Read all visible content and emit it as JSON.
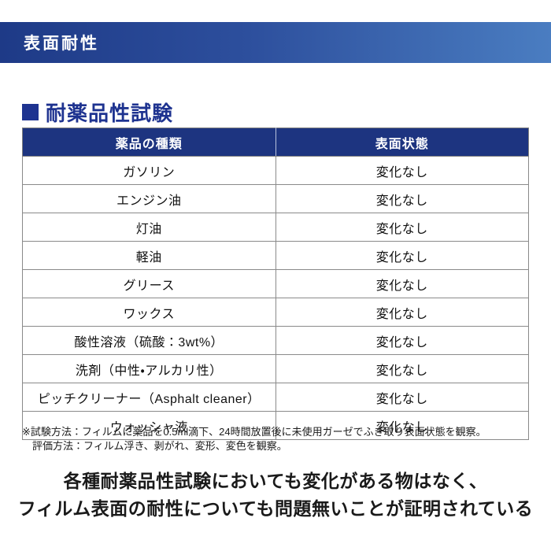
{
  "banner": {
    "title": "表面耐性"
  },
  "section": {
    "title": "耐薬品性試験"
  },
  "table": {
    "headers": {
      "chemical": "薬品の種類",
      "surface": "表面状態"
    },
    "rows": [
      {
        "chemical": "ガソリン",
        "state": "変化なし"
      },
      {
        "chemical": "エンジン油",
        "state": "変化なし"
      },
      {
        "chemical": "灯油",
        "state": "変化なし"
      },
      {
        "chemical": "軽油",
        "state": "変化なし"
      },
      {
        "chemical": "グリース",
        "state": "変化なし"
      },
      {
        "chemical": "ワックス",
        "state": "変化なし"
      },
      {
        "chemical": "酸性溶液（硫酸：3wt%）",
        "state": "変化なし"
      },
      {
        "chemical": "洗剤（中性・アルカリ性）",
        "state": "変化なし"
      },
      {
        "chemical": "ピッチクリーナー（Asphalt cleaner）",
        "state": "変化なし"
      },
      {
        "chemical": "ウォッシャ液",
        "state": "変化なし"
      }
    ]
  },
  "footnote": {
    "line1": "※試験方法：フィルムに薬品を0.5ml滴下、24時間放置後に未使用ガーゼでふき取り表面状態を観察。",
    "line2": "評価方法：フィルム浮き、剥がれ、変形、変色を観察。"
  },
  "summary": {
    "line1": "各種耐薬品性試験においても変化がある物はなく、",
    "line2": "フィルム表面の耐性についても問題無いことが証明されている"
  },
  "colors": {
    "banner_gradient_start": "#1e3a87",
    "banner_gradient_mid": "#2d4f9d",
    "banner_gradient_end": "#4a7dc1",
    "table_header_bg": "#1d3480",
    "accent_navy": "#1e3390",
    "grid_line": "#8a8a8a",
    "text_black": "#1a1a1a",
    "header_text": "#ffffff"
  }
}
